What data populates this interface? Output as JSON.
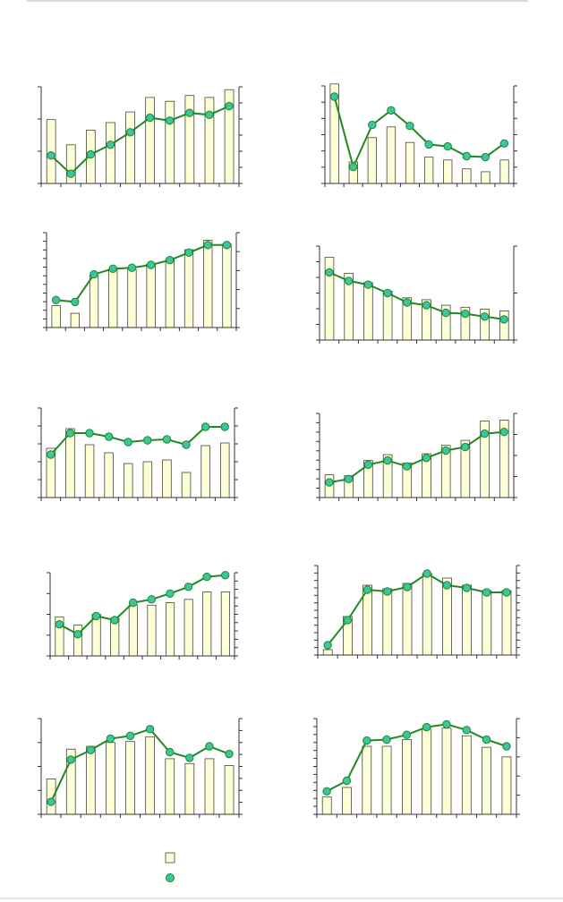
{
  "colors": {
    "bar_fill": "#ffffd6",
    "bar_stroke": "#444444",
    "line": "#1f8a1f",
    "marker": "#3cc5a0",
    "axis": "#333333"
  },
  "legend": {
    "bar_icon": "bar-swatch-icon",
    "line_icon": "line-marker-icon"
  },
  "chart_data": [
    {
      "type": "bar+line",
      "categories": 10,
      "bars": [
        0.66,
        0.4,
        0.55,
        0.63,
        0.74,
        0.89,
        0.85,
        0.91,
        0.89,
        0.97
      ],
      "line": [
        0.29,
        0.1,
        0.3,
        0.4,
        0.53,
        0.68,
        0.65,
        0.73,
        0.71,
        0.8
      ]
    },
    {
      "type": "bar+line",
      "categories": 10,
      "bars": [
        1.02,
        0.22,
        0.47,
        0.58,
        0.42,
        0.27,
        0.24,
        0.15,
        0.12,
        0.24
      ],
      "line": [
        0.89,
        0.17,
        0.6,
        0.75,
        0.59,
        0.4,
        0.38,
        0.28,
        0.27,
        0.41
      ]
    },
    {
      "type": "bar+line",
      "categories": 10,
      "bars": [
        0.23,
        0.15,
        0.55,
        0.62,
        0.61,
        0.67,
        0.72,
        0.82,
        0.92,
        0.88
      ],
      "line": [
        0.29,
        0.27,
        0.56,
        0.62,
        0.63,
        0.66,
        0.71,
        0.79,
        0.87,
        0.87
      ]
    },
    {
      "type": "bar+line",
      "categories": 10,
      "bars": [
        0.88,
        0.71,
        0.61,
        0.52,
        0.45,
        0.43,
        0.37,
        0.35,
        0.33,
        0.31
      ],
      "line": [
        0.72,
        0.63,
        0.59,
        0.5,
        0.4,
        0.37,
        0.29,
        0.28,
        0.25,
        0.22
      ]
    },
    {
      "type": "bar+line",
      "categories": 10,
      "bars": [
        0.55,
        0.77,
        0.59,
        0.5,
        0.38,
        0.4,
        0.42,
        0.28,
        0.58,
        0.61
      ],
      "line": [
        0.48,
        0.72,
        0.72,
        0.68,
        0.62,
        0.64,
        0.65,
        0.59,
        0.79,
        0.79
      ]
    },
    {
      "type": "bar+line",
      "categories": 10,
      "bars": [
        0.27,
        0.26,
        0.44,
        0.51,
        0.41,
        0.52,
        0.62,
        0.68,
        0.91,
        0.92
      ],
      "line": [
        0.18,
        0.22,
        0.39,
        0.44,
        0.37,
        0.47,
        0.56,
        0.6,
        0.76,
        0.78
      ]
    },
    {
      "type": "bar+line",
      "categories": 10,
      "bars": [
        0.47,
        0.37,
        0.5,
        0.45,
        0.61,
        0.61,
        0.64,
        0.68,
        0.77,
        0.77
      ],
      "line": [
        0.38,
        0.26,
        0.48,
        0.43,
        0.64,
        0.68,
        0.75,
        0.83,
        0.95,
        0.97
      ]
    },
    {
      "type": "bar+line",
      "categories": 10,
      "bars": [
        0.06,
        0.43,
        0.78,
        0.74,
        0.8,
        0.91,
        0.86,
        0.78,
        0.72,
        0.72
      ],
      "line": [
        0.11,
        0.39,
        0.73,
        0.71,
        0.76,
        0.91,
        0.78,
        0.75,
        0.7,
        0.7
      ]
    },
    {
      "type": "bar+line",
      "categories": 10,
      "bars": [
        0.37,
        0.68,
        0.71,
        0.75,
        0.76,
        0.81,
        0.58,
        0.53,
        0.58,
        0.51
      ],
      "line": [
        0.13,
        0.57,
        0.67,
        0.79,
        0.82,
        0.89,
        0.65,
        0.59,
        0.71,
        0.63
      ]
    },
    {
      "type": "bar+line",
      "categories": 10,
      "bars": [
        0.18,
        0.28,
        0.71,
        0.71,
        0.78,
        0.89,
        0.9,
        0.82,
        0.7,
        0.6
      ],
      "line": [
        0.24,
        0.35,
        0.77,
        0.78,
        0.83,
        0.91,
        0.94,
        0.88,
        0.78,
        0.71
      ]
    }
  ]
}
